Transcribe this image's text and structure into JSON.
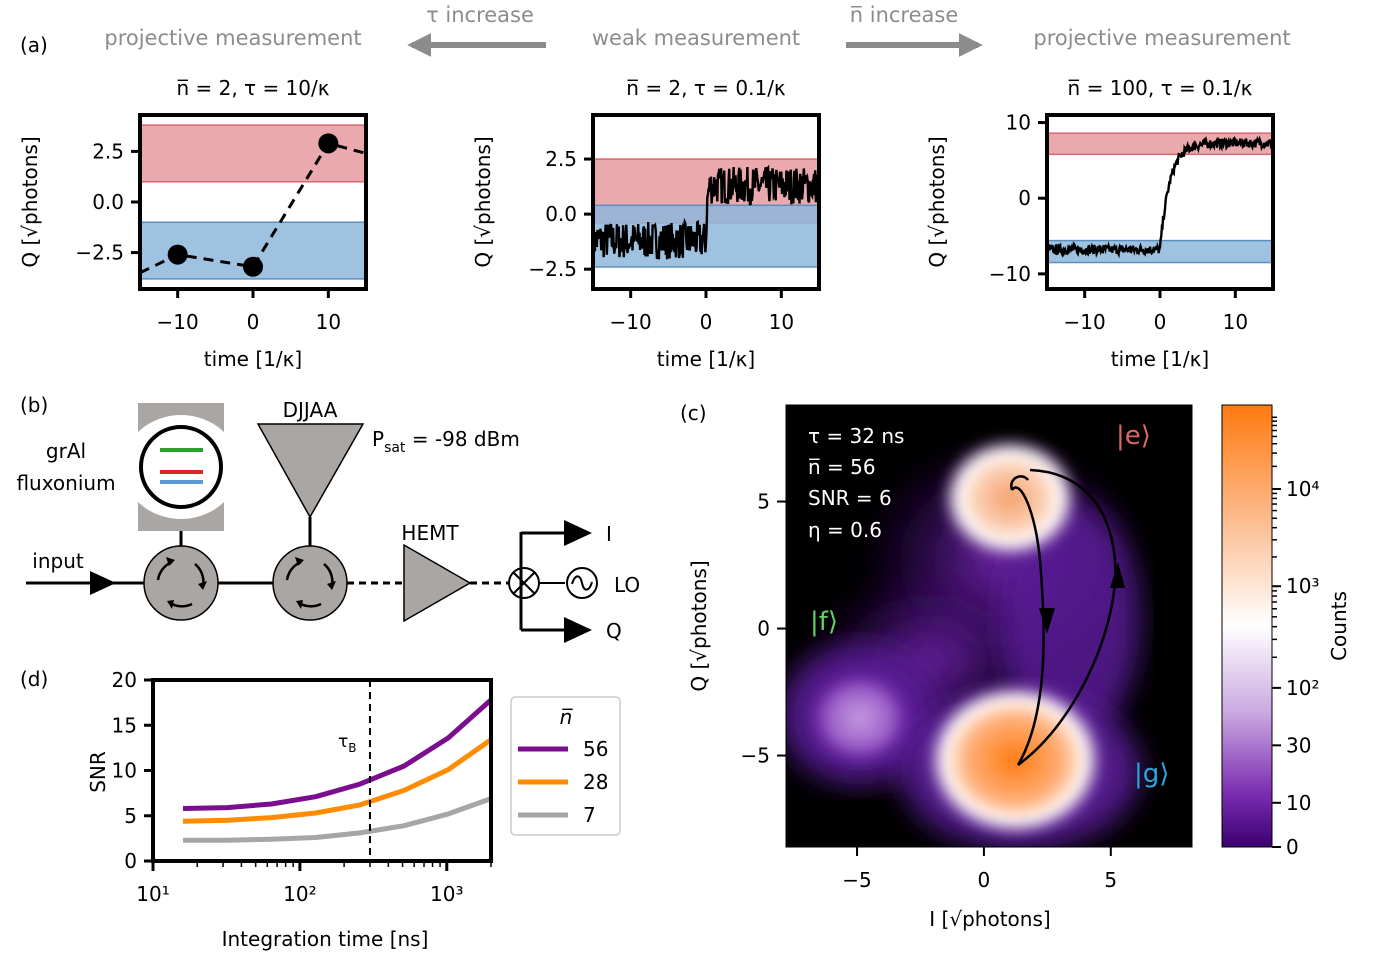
{
  "header": {
    "label_a": "(a)",
    "left_title": "projective measurement",
    "tau_increase": "τ increase",
    "mid_title": "weak measurement",
    "n_increase": "n̅ increase",
    "right_title": "projective measurement"
  },
  "panel_a": [
    {
      "title": "n̅ = 2, τ = 10/κ",
      "xlabel": "time [1/κ]",
      "ylabel": "Q [√photons]",
      "xlim": [
        -15,
        15
      ],
      "ylim": [
        -4.3,
        4.3
      ],
      "xticks": [
        -10,
        0,
        10
      ],
      "yticks": [
        -2.5,
        0.0,
        2.5
      ],
      "ytick_labels": [
        "−2.5",
        "0.0",
        "2.5"
      ],
      "xtick_labels": [
        "−10",
        "0",
        "10"
      ],
      "red_band": [
        1.0,
        3.8
      ],
      "blue_band": [
        -3.8,
        -1.0
      ],
      "points": [
        [
          -10,
          -2.6
        ],
        [
          0,
          -3.2
        ],
        [
          10,
          2.9
        ]
      ],
      "extend_left": [
        -15,
        -3.5
      ],
      "extend_right": [
        15,
        2.4
      ]
    },
    {
      "title": "n̅ = 2, τ = 0.1/κ",
      "xlabel": "time [1/κ]",
      "ylabel": "Q [√photons]",
      "xlim": [
        -15,
        15
      ],
      "ylim": [
        -3.4,
        4.5
      ],
      "xticks": [
        -10,
        0,
        10
      ],
      "yticks": [
        -2.5,
        0.0,
        2.5
      ],
      "ytick_labels": [
        "−2.5",
        "0.0",
        "2.5"
      ],
      "xtick_labels": [
        "−10",
        "0",
        "10"
      ],
      "red_band": [
        -0.4,
        2.5
      ],
      "blue_band": [
        -2.4,
        0.4
      ],
      "trace": {
        "before": -1.2,
        "after": 1.3,
        "switch": 0,
        "noise": 0.85,
        "rise": 0.15
      }
    },
    {
      "title": "n̅ = 100, τ = 0.1/κ",
      "xlabel": "time [1/κ]",
      "ylabel": "Q [√photons]",
      "xlim": [
        -15,
        15
      ],
      "ylim": [
        -12,
        11
      ],
      "xticks": [
        -10,
        0,
        10
      ],
      "yticks": [
        -10,
        0,
        10
      ],
      "ytick_labels": [
        "−10",
        "0",
        "10"
      ],
      "xtick_labels": [
        "−10",
        "0",
        "10"
      ],
      "red_band": [
        5.8,
        8.6
      ],
      "blue_band": [
        -8.5,
        -5.6
      ],
      "trace": {
        "before": -6.8,
        "after": 7.3,
        "switch": 0,
        "noise": 0.6,
        "rise": 1.3
      }
    }
  ],
  "panel_b": {
    "label": "(b)",
    "qubit_label_1": "grAl",
    "qubit_label_2": "fluxonium",
    "amp_label": "DJJAA",
    "psat_prefix": "P",
    "psat_sub": "sat",
    "psat_value": " = -98 dBm",
    "input_label": "input",
    "hemt_label": "HEMT",
    "i_label": "I",
    "q_label": "Q",
    "lo_label": "LO",
    "level_colors": [
      "#2ca02c",
      "#d62728",
      "#5b9bd5"
    ]
  },
  "panel_c": {
    "label": "(c)",
    "annotations": [
      "τ = 32 ns",
      "n̅ = 56",
      "SNR = 6",
      "η = 0.6"
    ],
    "state_e": "|e⟩",
    "state_f": "|f⟩",
    "state_g": "|g⟩",
    "color_e": "#e06666",
    "color_f": "#5fd35f",
    "color_g": "#29a8e0",
    "xlabel": "I [√photons]",
    "ylabel": "Q [√photons]",
    "xlim": [
      -7.8,
      8.2
    ],
    "ylim": [
      -8.6,
      8.8
    ],
    "xticks": [
      -5,
      0,
      5
    ],
    "yticks": [
      -5,
      0,
      5
    ],
    "xtick_labels": [
      "−5",
      "0",
      "5"
    ],
    "ytick_labels": [
      "−5",
      "0",
      "5"
    ],
    "colorbar_label": "Counts",
    "colorbar_ticks": [
      "10⁴",
      "10³",
      "10²",
      "30",
      "10",
      "0"
    ],
    "colorbar_tick_fracs": [
      0.19,
      0.41,
      0.64,
      0.77,
      0.9,
      1.0
    ],
    "colormap": [
      "#ff7a0e",
      "#ffffff",
      "#5d0a9c",
      "#2b0060"
    ]
  },
  "panel_d": {
    "label": "(d)",
    "xlabel": "Integration time [ns]",
    "ylabel": "SNR",
    "tau_label": "τ",
    "tau_sub": "B",
    "legend_title": "n̅",
    "x_scale": "log",
    "xlim": [
      10,
      2000
    ],
    "ylim": [
      0,
      20
    ],
    "yticks": [
      0,
      5,
      10,
      15,
      20
    ],
    "xtick_labels": [
      "10¹",
      "10²",
      "10³"
    ],
    "tau_b_ns": 300
  },
  "chart_data": {
    "type": "line",
    "x": [
      16,
      32,
      64,
      128,
      256,
      512,
      1024,
      2000
    ],
    "series": [
      {
        "name": "56",
        "color": "#7b0e8f",
        "values": [
          5.8,
          5.9,
          6.3,
          7.1,
          8.5,
          10.5,
          13.6,
          17.8
        ]
      },
      {
        "name": "28",
        "color": "#ff8c00",
        "values": [
          4.4,
          4.5,
          4.8,
          5.3,
          6.2,
          7.8,
          10.1,
          13.4
        ]
      },
      {
        "name": "7",
        "color": "#a6a6a6",
        "values": [
          2.3,
          2.3,
          2.4,
          2.6,
          3.1,
          3.9,
          5.2,
          6.9
        ]
      }
    ],
    "xlabel": "Integration time [ns]",
    "ylabel": "SNR",
    "ylim": [
      0,
      20
    ],
    "x_scale": "log"
  }
}
